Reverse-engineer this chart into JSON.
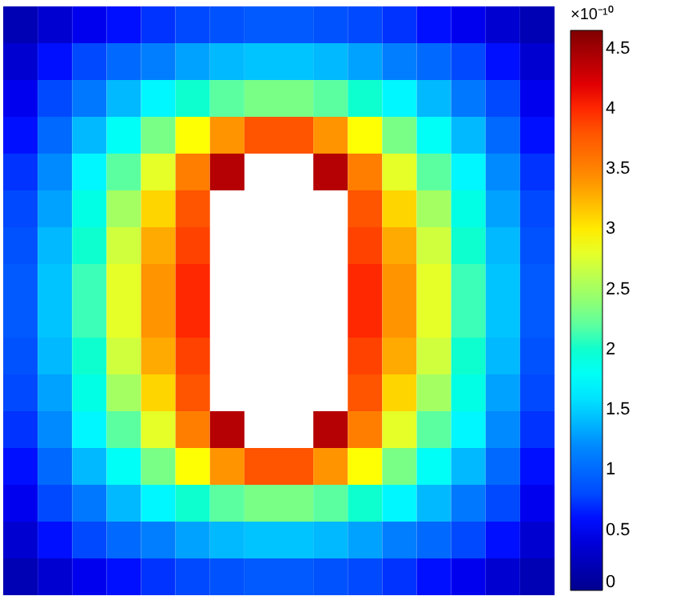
{
  "chart_data": {
    "type": "heatmap",
    "categories": [
      null,
      null,
      null,
      null,
      null,
      null,
      null,
      null,
      null,
      null,
      null,
      null,
      null,
      null,
      null,
      null
    ],
    "y_categories": [
      null,
      null,
      null,
      null,
      null,
      null,
      null,
      null,
      null,
      null,
      null,
      null,
      null,
      null,
      null,
      null
    ],
    "cells": [
      [
        0.2,
        0.35,
        0.5,
        0.6,
        0.7,
        0.8,
        0.85,
        0.9,
        0.9,
        0.85,
        0.8,
        0.7,
        0.6,
        0.5,
        0.35,
        0.2
      ],
      [
        0.35,
        0.6,
        0.8,
        1.0,
        1.15,
        1.3,
        1.4,
        1.45,
        1.45,
        1.4,
        1.3,
        1.15,
        1.0,
        0.8,
        0.6,
        0.35
      ],
      [
        0.5,
        0.8,
        1.1,
        1.4,
        1.7,
        2.0,
        2.2,
        2.3,
        2.3,
        2.2,
        2.0,
        1.7,
        1.4,
        1.1,
        0.8,
        0.5
      ],
      [
        0.6,
        1.0,
        1.4,
        1.8,
        2.3,
        2.9,
        3.4,
        3.8,
        3.8,
        3.4,
        2.9,
        2.3,
        1.8,
        1.4,
        1.0,
        0.6
      ],
      [
        0.7,
        1.2,
        1.7,
        2.2,
        2.8,
        3.5,
        4.4,
        null,
        null,
        4.4,
        3.5,
        2.8,
        2.2,
        1.7,
        1.2,
        0.7
      ],
      [
        0.8,
        1.3,
        1.9,
        2.5,
        3.1,
        3.8,
        null,
        null,
        null,
        null,
        3.8,
        3.1,
        2.5,
        1.9,
        1.3,
        0.8
      ],
      [
        0.85,
        1.4,
        2.0,
        2.7,
        3.3,
        3.9,
        null,
        null,
        null,
        null,
        3.9,
        3.3,
        2.7,
        2.0,
        1.4,
        0.85
      ],
      [
        0.9,
        1.45,
        2.1,
        2.8,
        3.4,
        4.0,
        null,
        null,
        null,
        null,
        4.0,
        3.4,
        2.8,
        2.1,
        1.45,
        0.9
      ],
      [
        0.9,
        1.45,
        2.1,
        2.8,
        3.4,
        4.0,
        null,
        null,
        null,
        null,
        4.0,
        3.4,
        2.8,
        2.1,
        1.45,
        0.9
      ],
      [
        0.85,
        1.4,
        2.0,
        2.7,
        3.3,
        3.9,
        null,
        null,
        null,
        null,
        3.9,
        3.3,
        2.7,
        2.0,
        1.4,
        0.85
      ],
      [
        0.8,
        1.3,
        1.9,
        2.5,
        3.1,
        3.8,
        null,
        null,
        null,
        null,
        3.8,
        3.1,
        2.5,
        1.9,
        1.3,
        0.8
      ],
      [
        0.7,
        1.2,
        1.7,
        2.2,
        2.8,
        3.5,
        4.4,
        null,
        null,
        4.4,
        3.5,
        2.8,
        2.2,
        1.7,
        1.2,
        0.7
      ],
      [
        0.6,
        1.0,
        1.4,
        1.8,
        2.3,
        2.9,
        3.4,
        3.8,
        3.8,
        3.4,
        2.9,
        2.3,
        1.8,
        1.4,
        1.0,
        0.6
      ],
      [
        0.5,
        0.8,
        1.1,
        1.4,
        1.7,
        2.0,
        2.2,
        2.3,
        2.3,
        2.2,
        2.0,
        1.7,
        1.4,
        1.1,
        0.8,
        0.5
      ],
      [
        0.35,
        0.6,
        0.8,
        1.0,
        1.15,
        1.3,
        1.4,
        1.45,
        1.45,
        1.4,
        1.3,
        1.15,
        1.0,
        0.8,
        0.6,
        0.35
      ],
      [
        0.2,
        0.35,
        0.5,
        0.6,
        0.7,
        0.8,
        0.85,
        0.9,
        0.9,
        0.85,
        0.8,
        0.7,
        0.6,
        0.5,
        0.35,
        0.2
      ]
    ],
    "clabel": "×10⁻¹⁰",
    "clim": [
      0,
      4.65
    ],
    "cticks": [
      0,
      0.5,
      1,
      1.5,
      2,
      2.5,
      3,
      3.5,
      4,
      4.5
    ],
    "tick_labels": false
  }
}
